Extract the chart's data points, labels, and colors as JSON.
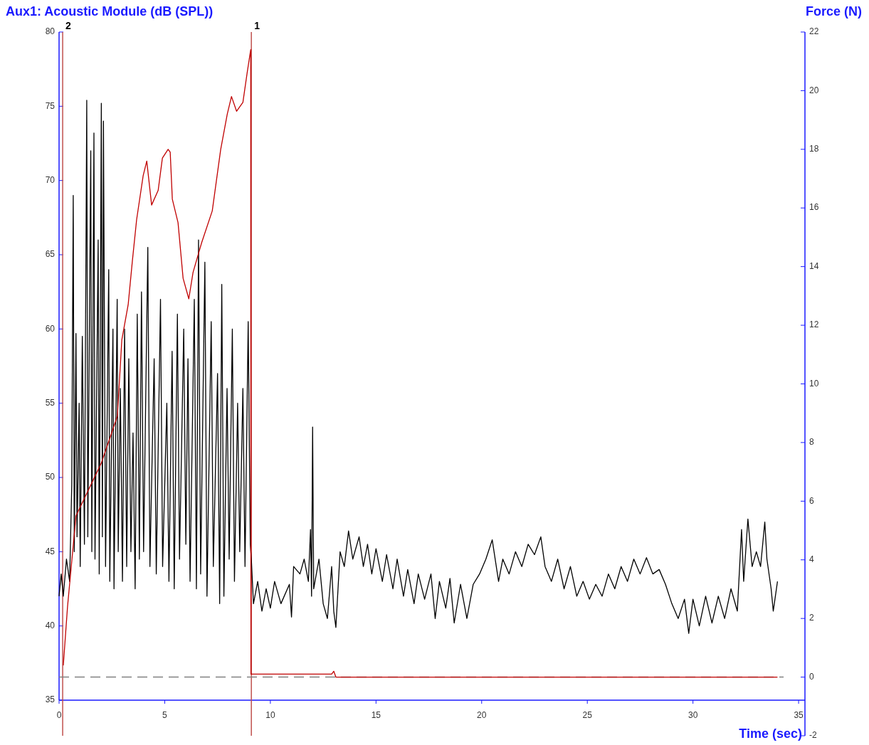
{
  "chart_data": {
    "type": "line",
    "ylabel": "Aux1: Acoustic Module (dB (SPL))",
    "y2label": "Force (N)",
    "xlabel": "Time (sec)",
    "xlim": [
      0,
      35.3
    ],
    "xticks": [
      0,
      5,
      10,
      15,
      20,
      25,
      30,
      35
    ],
    "ylim": [
      35,
      80
    ],
    "yticks": [
      35,
      40,
      45,
      50,
      55,
      60,
      65,
      70,
      75,
      80
    ],
    "y2lim": [
      -2,
      22
    ],
    "y2ticks": [
      -2,
      0,
      2,
      4,
      6,
      8,
      10,
      12,
      14,
      16,
      18,
      20,
      22
    ],
    "grid": false,
    "marker": "none",
    "line_style": "solid",
    "series": [
      {
        "color": "#000000",
        "axis": "y",
        "x": [
          0,
          0.1,
          0.2,
          0.35,
          0.5,
          0.6,
          0.67,
          0.72,
          0.8,
          0.85,
          0.95,
          1.0,
          1.1,
          1.2,
          1.31,
          1.36,
          1.5,
          1.55,
          1.65,
          1.7,
          1.85,
          1.9,
          2.0,
          2.05,
          2.1,
          2.2,
          2.35,
          2.4,
          2.55,
          2.6,
          2.75,
          2.8,
          2.9,
          3.0,
          3.1,
          3.2,
          3.3,
          3.4,
          3.5,
          3.6,
          3.7,
          3.8,
          3.9,
          4.0,
          4.2,
          4.3,
          4.5,
          4.6,
          4.8,
          4.9,
          5.1,
          5.2,
          5.35,
          5.45,
          5.6,
          5.7,
          5.9,
          6.0,
          6.1,
          6.2,
          6.4,
          6.5,
          6.6,
          6.7,
          6.9,
          7.0,
          7.2,
          7.3,
          7.5,
          7.6,
          7.7,
          7.8,
          7.95,
          8.05,
          8.2,
          8.3,
          8.45,
          8.55,
          8.7,
          8.8,
          8.95,
          9.05,
          9.1,
          9.2,
          9.4,
          9.6,
          9.8,
          10.0,
          10.2,
          10.5,
          10.9,
          11.0,
          11.1,
          11.4,
          11.6,
          11.8,
          11.9,
          11.95,
          12.0,
          12.05,
          12.3,
          12.5,
          12.7,
          12.9,
          13.0,
          13.1,
          13.3,
          13.5,
          13.7,
          13.9,
          14.2,
          14.4,
          14.6,
          14.8,
          15.0,
          15.3,
          15.5,
          15.8,
          16.0,
          16.3,
          16.5,
          16.8,
          17.0,
          17.3,
          17.6,
          17.8,
          18.0,
          18.3,
          18.5,
          18.7,
          19.0,
          19.3,
          19.6,
          19.9,
          20.2,
          20.5,
          20.8,
          21.0,
          21.3,
          21.6,
          21.9,
          22.2,
          22.5,
          22.8,
          23.0,
          23.3,
          23.6,
          23.9,
          24.2,
          24.5,
          24.8,
          25.1,
          25.4,
          25.7,
          26.0,
          26.3,
          26.6,
          26.9,
          27.2,
          27.5,
          27.8,
          28.1,
          28.4,
          28.7,
          29.0,
          29.3,
          29.6,
          29.8,
          30.0,
          30.3,
          30.6,
          30.9,
          31.2,
          31.5,
          31.8,
          32.1,
          32.3,
          32.4,
          32.6,
          32.8,
          33.0,
          33.2,
          33.4,
          33.5,
          33.7,
          33.8,
          34.0
        ],
        "values": [
          42.0,
          43.5,
          42.0,
          44.5,
          43.0,
          49.5,
          69.0,
          45.0,
          59.7,
          46.0,
          55.0,
          44.0,
          59.5,
          45.5,
          75.4,
          46.0,
          72.0,
          45.0,
          73.2,
          44.5,
          66.0,
          43.5,
          75.2,
          46.0,
          74.0,
          44.0,
          64.0,
          43.0,
          60.0,
          42.5,
          62.0,
          45.0,
          56.0,
          43.0,
          60.0,
          44.0,
          58.0,
          45.0,
          53.0,
          42.5,
          61.0,
          44.5,
          62.5,
          45.0,
          65.5,
          44.0,
          58.0,
          43.5,
          62.0,
          44.0,
          55.0,
          43.0,
          58.5,
          42.5,
          61.0,
          44.5,
          60.0,
          45.5,
          58.0,
          43.0,
          62.0,
          42.5,
          66.0,
          43.5,
          64.5,
          42.0,
          60.5,
          44.0,
          57.0,
          41.5,
          63.0,
          42.0,
          56.0,
          44.5,
          60.0,
          43.0,
          55.0,
          45.0,
          56.0,
          44.0,
          60.5,
          45.5,
          44.5,
          41.5,
          43.0,
          41.0,
          42.5,
          41.2,
          43.0,
          41.5,
          42.8,
          40.6,
          44.0,
          43.5,
          44.5,
          43.0,
          46.5,
          42.0,
          53.4,
          42.5,
          44.5,
          41.5,
          40.5,
          44.0,
          41.0,
          39.9,
          45.0,
          44.0,
          46.4,
          44.5,
          46.0,
          44.0,
          45.5,
          43.5,
          45.2,
          43.0,
          44.8,
          42.5,
          44.5,
          42.0,
          43.8,
          41.5,
          43.5,
          41.8,
          43.5,
          40.5,
          43.0,
          41.2,
          43.2,
          40.2,
          42.8,
          40.5,
          42.8,
          43.5,
          44.5,
          45.8,
          43.0,
          44.5,
          43.5,
          45.0,
          44.0,
          45.5,
          44.8,
          46.0,
          44.0,
          43.0,
          44.5,
          42.5,
          44.0,
          42.0,
          43.0,
          41.8,
          42.8,
          42.0,
          43.5,
          42.5,
          44.0,
          43.0,
          44.5,
          43.5,
          44.6,
          43.5,
          43.8,
          42.8,
          41.5,
          40.5,
          41.8,
          39.5,
          41.8,
          40.0,
          42.0,
          40.2,
          42.0,
          40.5,
          42.5,
          41.0,
          46.5,
          43.0,
          47.2,
          44.0,
          45.0,
          44.0,
          47.0,
          44.5,
          42.5,
          41.0,
          43.0
        ]
      },
      {
        "color": "#c00000",
        "axis": "y2",
        "x": [
          0.2,
          0.4,
          0.8,
          2.0,
          2.76,
          2.97,
          3.27,
          3.47,
          3.67,
          3.98,
          4.15,
          4.38,
          4.69,
          4.89,
          5.16,
          5.26,
          5.36,
          5.63,
          5.87,
          6.14,
          6.34,
          6.74,
          7.25,
          7.65,
          7.96,
          8.16,
          8.4,
          8.7,
          8.9,
          9.07,
          9.08,
          10.0,
          12.0,
          12.9,
          13.0,
          13.1,
          34.0
        ],
        "values": [
          0.4,
          2.4,
          5.5,
          7.3,
          8.9,
          11.5,
          12.7,
          14.2,
          15.6,
          17.1,
          17.6,
          16.1,
          16.6,
          17.7,
          18.0,
          17.9,
          16.3,
          15.5,
          13.6,
          12.9,
          13.8,
          14.8,
          15.9,
          18.0,
          19.2,
          19.8,
          19.3,
          19.6,
          20.6,
          21.4,
          0.1,
          0.1,
          0.1,
          0.1,
          0.2,
          0.0,
          0.0
        ]
      }
    ],
    "annotations": [
      {
        "text": "2",
        "x": 0.17,
        "y": 80
      },
      {
        "text": "1",
        "x": 9.1,
        "y": 80
      }
    ],
    "ref_lines": [
      {
        "axis": "x",
        "value": 0.17,
        "label": null,
        "color": "#c0504d",
        "line_style": "solid"
      },
      {
        "axis": "x",
        "value": 9.1,
        "label": null,
        "color": "#c0504d",
        "line_style": "solid"
      },
      {
        "axis": "y2",
        "value": 0,
        "label": null,
        "color": "#808080",
        "line_style": "dashed"
      }
    ]
  }
}
